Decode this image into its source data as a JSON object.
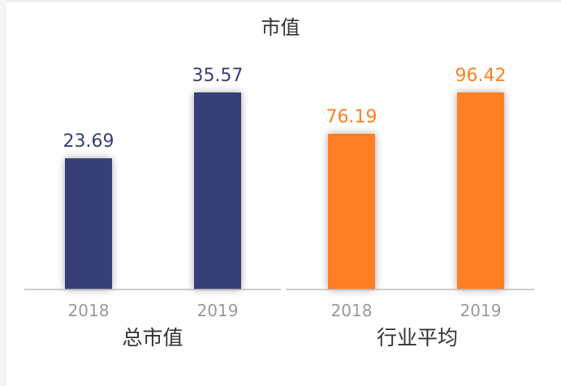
{
  "chart_data": {
    "type": "bar",
    "title": "市值",
    "groups": [
      {
        "name": "总市值",
        "categories": [
          "2018",
          "2019"
        ],
        "values": [
          23.69,
          35.57
        ],
        "value_labels": [
          "23.69",
          "35.57"
        ],
        "color": "#353f78"
      },
      {
        "name": "行业平均",
        "categories": [
          "2018",
          "2019"
        ],
        "values": [
          76.19,
          96.42
        ],
        "value_labels": [
          "76.19",
          "96.42"
        ],
        "color": "#ff7f24"
      }
    ],
    "xlabel": "",
    "ylabel": "",
    "grid": false,
    "legend": "none"
  },
  "colors": {
    "axis": "#bbbbbb",
    "tick_text": "#999999",
    "title_text": "#333333"
  }
}
